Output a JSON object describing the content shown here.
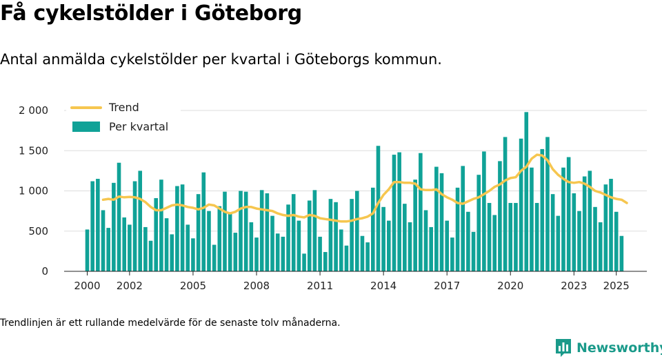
{
  "title": "Få cykelstölder i Göteborg",
  "subtitle": "Antal anmälda cykelstölder per kvartal i Göteborgs kommun.",
  "footnote": "Trendlinjen är ett rullande medelvärde för de senaste tolv månaderna.",
  "brand": {
    "name": "Newsworthy",
    "icon": "bar-chart-logo-icon"
  },
  "colors": {
    "bars": "#10a297",
    "trend": "#f6c64f",
    "grid": "#dddddd",
    "brand": "#1a9a8a"
  },
  "chart_data": {
    "type": "bar",
    "title": "Få cykelstölder i Göteborg",
    "subtitle": "Antal anmälda cykelstölder per kvartal i Göteborgs kommun.",
    "xlabel": "",
    "ylabel": "",
    "ylim": [
      0,
      2000
    ],
    "yticks": [
      0,
      500,
      1000,
      1500,
      2000
    ],
    "ytick_labels": [
      "0",
      "500",
      "1 000",
      "1 500",
      "2 000"
    ],
    "xticks": [
      2000,
      2002,
      2005,
      2008,
      2011,
      2014,
      2017,
      2020,
      2023,
      2025
    ],
    "xtick_labels": [
      "2000",
      "2002",
      "2005",
      "2008",
      "2011",
      "2014",
      "2017",
      "2020",
      "2023",
      "2025"
    ],
    "grid": true,
    "legend_position": "top-left",
    "start_quarter": "2000-Q1",
    "series": [
      {
        "name": "Per kvartal",
        "type": "bar",
        "values": [
          520,
          1120,
          1150,
          760,
          540,
          1100,
          1350,
          670,
          580,
          1120,
          1250,
          550,
          380,
          910,
          1140,
          660,
          460,
          1060,
          1080,
          580,
          410,
          960,
          1230,
          750,
          330,
          810,
          990,
          720,
          480,
          1000,
          990,
          610,
          420,
          1010,
          970,
          690,
          470,
          430,
          830,
          960,
          630,
          220,
          880,
          1010,
          430,
          240,
          900,
          860,
          520,
          320,
          900,
          1000,
          440,
          360,
          1040,
          1560,
          800,
          630,
          1450,
          1480,
          840,
          610,
          1140,
          1470,
          760,
          550,
          1300,
          1220,
          630,
          420,
          1040,
          1310,
          740,
          490,
          1200,
          1490,
          850,
          700,
          1370,
          1670,
          850,
          850,
          1650,
          1980,
          1290,
          850,
          1520,
          1670,
          960,
          690,
          1290,
          1420,
          970,
          750,
          1180,
          1250,
          800,
          610,
          1080,
          1150,
          740,
          440
        ]
      },
      {
        "name": "Trend",
        "type": "line",
        "values": [
          null,
          null,
          null,
          890,
          900,
          890,
          930,
          920,
          925,
          920,
          900,
          860,
          800,
          760,
          760,
          790,
          820,
          830,
          820,
          800,
          790,
          770,
          790,
          830,
          820,
          780,
          740,
          720,
          740,
          780,
          800,
          800,
          780,
          770,
          760,
          750,
          720,
          700,
          690,
          700,
          680,
          670,
          700,
          690,
          660,
          650,
          640,
          630,
          620,
          620,
          630,
          650,
          660,
          680,
          720,
          850,
          950,
          1020,
          1110,
          1110,
          1100,
          1100,
          1090,
          1020,
          1010,
          1010,
          1020,
          960,
          920,
          890,
          850,
          840,
          870,
          900,
          920,
          960,
          1000,
          1050,
          1080,
          1130,
          1160,
          1170,
          1250,
          1300,
          1400,
          1450,
          1440,
          1380,
          1270,
          1200,
          1150,
          1110,
          1100,
          1110,
          1090,
          1050,
          1000,
          980,
          950,
          920,
          900,
          890,
          850
        ]
      }
    ]
  }
}
